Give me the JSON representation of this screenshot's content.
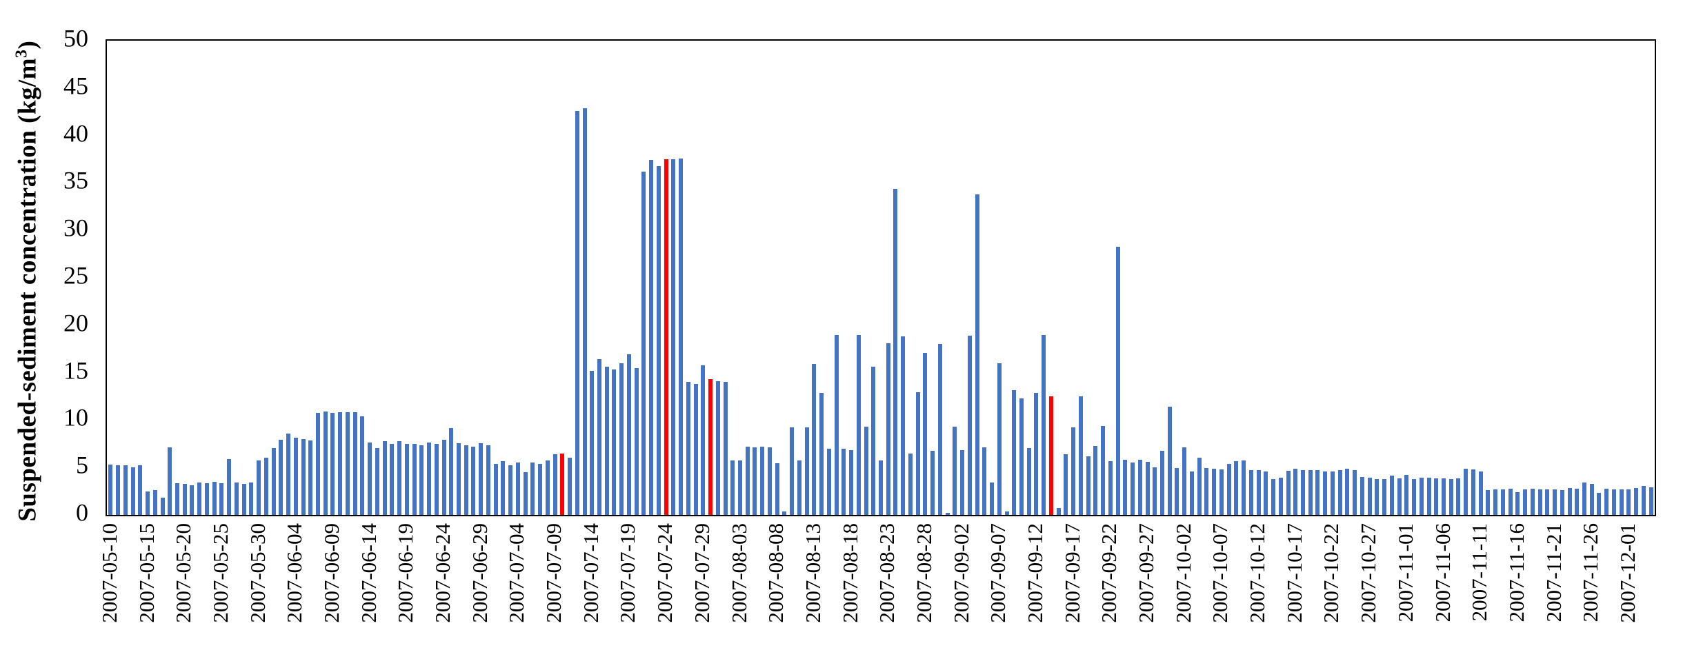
{
  "chart_data": {
    "type": "bar",
    "title": "",
    "xlabel": "",
    "ylabel": "Suspended-sediment concentration (kg/m³)",
    "ylim": [
      0,
      50
    ],
    "yticks": [
      0,
      5,
      10,
      15,
      20,
      25,
      30,
      35,
      40,
      45,
      50
    ],
    "grid": false,
    "legend": "none",
    "bar_color": "#4472C4",
    "highlight_color": "#FF0000",
    "axis_color": "#000000",
    "start_date": "2007-05-10",
    "x_tick_every": 5,
    "x_tick_labels": [
      "2007-05-10",
      "2007-05-15",
      "2007-05-20",
      "2007-05-25",
      "2007-05-30",
      "2007-06-04",
      "2007-06-09",
      "2007-06-14",
      "2007-06-19",
      "2007-06-24",
      "2007-06-29",
      "2007-07-04",
      "2007-07-09",
      "2007-07-14",
      "2007-07-19",
      "2007-07-24",
      "2007-07-29",
      "2007-08-03",
      "2007-08-08",
      "2007-08-13",
      "2007-08-18",
      "2007-08-23",
      "2007-08-28",
      "2007-09-02",
      "2007-09-07",
      "2007-09-12",
      "2007-09-17",
      "2007-09-22",
      "2007-09-27",
      "2007-10-02",
      "2007-10-07",
      "2007-10-12",
      "2007-10-17",
      "2007-10-22",
      "2007-10-27",
      "2007-11-01",
      "2007-11-06",
      "2007-11-11",
      "2007-11-16",
      "2007-11-21",
      "2007-11-26",
      "2007-12-01"
    ],
    "red_indices": [
      61,
      75,
      81,
      127
    ],
    "values": [
      5.3,
      5.2,
      5.25,
      5.05,
      5.25,
      2.5,
      2.6,
      1.8,
      7.1,
      3.35,
      3.25,
      3.1,
      3.45,
      3.35,
      3.5,
      3.35,
      5.9,
      3.4,
      3.25,
      3.45,
      5.75,
      6.0,
      7.05,
      7.9,
      8.55,
      8.15,
      8.0,
      7.85,
      10.75,
      10.9,
      10.75,
      10.85,
      10.85,
      10.85,
      10.4,
      7.6,
      7.05,
      7.8,
      7.5,
      7.75,
      7.5,
      7.5,
      7.35,
      7.65,
      7.5,
      7.95,
      9.15,
      7.55,
      7.35,
      7.2,
      7.55,
      7.35,
      5.4,
      5.65,
      5.2,
      5.5,
      4.5,
      5.55,
      5.35,
      5.75,
      6.4,
      6.5,
      6.0,
      42.6,
      42.9,
      15.2,
      16.4,
      15.6,
      15.3,
      16.0,
      16.9,
      15.5,
      36.2,
      37.45,
      36.75,
      37.5,
      37.5,
      37.6,
      14.0,
      13.8,
      15.8,
      14.3,
      14.1,
      14.0,
      5.75,
      5.75,
      7.2,
      7.1,
      7.2,
      7.1,
      5.45,
      0.35,
      9.2,
      5.75,
      9.25,
      15.9,
      12.85,
      6.95,
      19.0,
      7.0,
      6.85,
      18.95,
      9.3,
      15.6,
      5.75,
      18.1,
      34.4,
      18.8,
      6.45,
      12.95,
      17.05,
      6.75,
      18.05,
      0.2,
      9.3,
      6.8,
      18.9,
      33.8,
      7.1,
      3.4,
      16.0,
      0.35,
      13.15,
      12.25,
      7.05,
      12.85,
      19.0,
      12.5,
      0.7,
      6.4,
      9.25,
      12.5,
      6.2,
      7.3,
      9.4,
      5.7,
      28.3,
      5.85,
      5.55,
      5.85,
      5.6,
      5.0,
      6.75,
      11.4,
      4.95,
      7.1,
      4.6,
      6.0,
      4.95,
      4.85,
      4.8,
      5.4,
      5.7,
      5.75,
      4.7,
      4.7,
      4.6,
      3.75,
      3.9,
      4.65,
      4.9,
      4.75,
      4.7,
      4.7,
      4.6,
      4.6,
      4.7,
      4.85,
      4.7,
      4.0,
      3.9,
      3.8,
      3.8,
      4.15,
      3.85,
      4.2,
      3.8,
      3.9,
      3.9,
      3.85,
      3.85,
      3.8,
      3.85,
      4.9,
      4.8,
      4.6,
      2.65,
      2.7,
      2.7,
      2.75,
      2.4,
      2.7,
      2.75,
      2.7,
      2.7,
      2.7,
      2.65,
      2.8,
      2.75,
      3.4,
      3.25,
      2.3,
      2.75,
      2.7,
      2.7,
      2.7,
      2.8,
      3.05,
      2.9
    ]
  }
}
